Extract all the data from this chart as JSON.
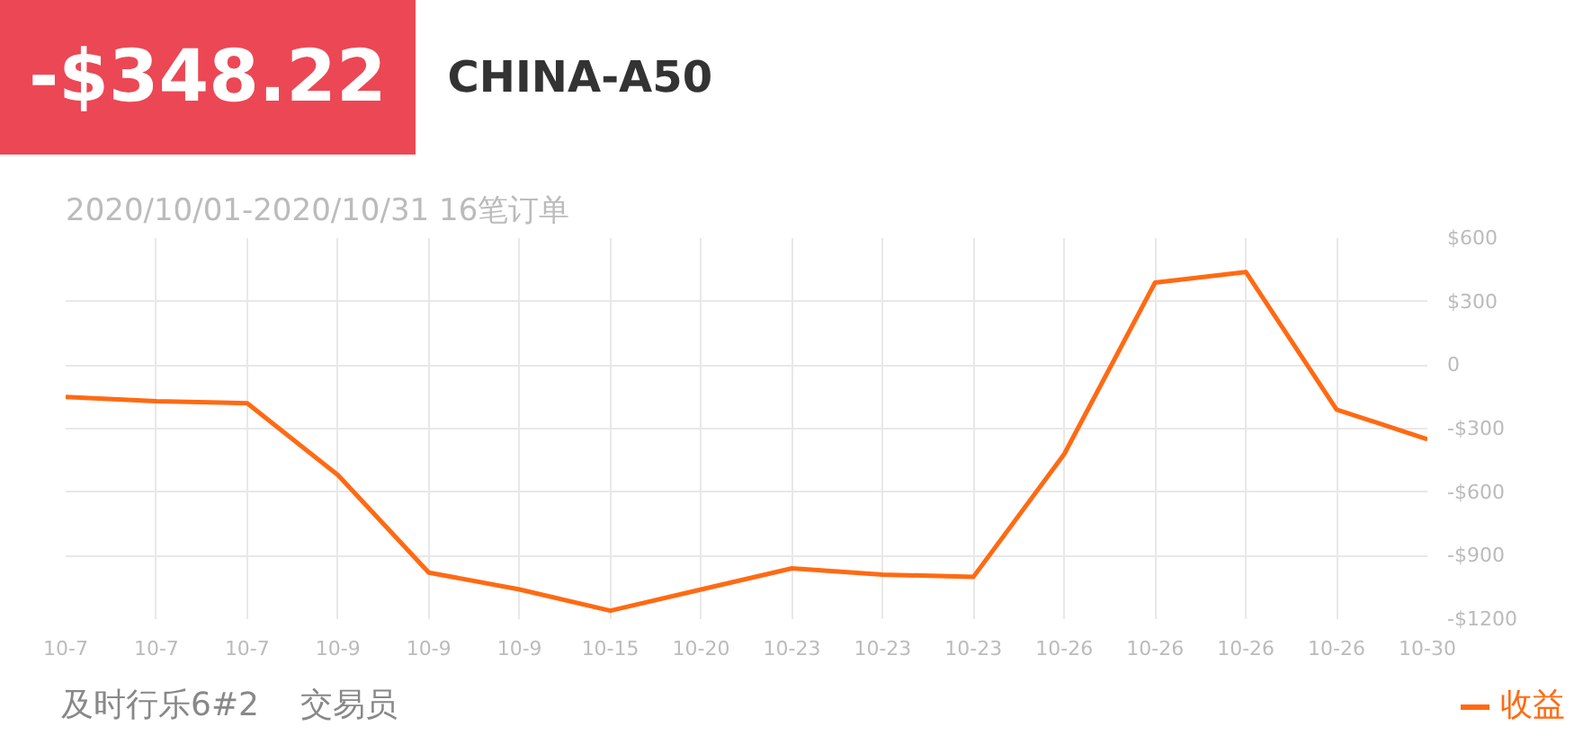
{
  "chart_data": {
    "type": "line",
    "title": "CHINA-A50",
    "subtitle": "2020/10/01-2020/10/31 16笔订单",
    "annotations": [
      "-$348.22",
      "及时行乐6#2",
      "交易员"
    ],
    "categories": [
      "10-7",
      "10-7",
      "10-7",
      "10-9",
      "10-9",
      "10-9",
      "10-15",
      "10-20",
      "10-23",
      "10-23",
      "10-23",
      "10-26",
      "10-26",
      "10-26",
      "10-26",
      "10-30"
    ],
    "series": [
      {
        "name": "收益",
        "color": "#ff6a13",
        "values": [
          -150,
          -170,
          -180,
          -520,
          -980,
          -1060,
          -1160,
          -1060,
          -960,
          -990,
          -1000,
          -420,
          390,
          440,
          -210,
          -350
        ]
      }
    ],
    "ylim": [
      -1200,
      600
    ],
    "yticks": [
      {
        "value": 600,
        "label": "$600"
      },
      {
        "value": 300,
        "label": "$300"
      },
      0,
      {
        "value": -300,
        "label": "-$300"
      },
      {
        "value": -600,
        "label": "-$600"
      },
      {
        "value": -900,
        "label": "-$900"
      },
      {
        "value": -1200,
        "label": "-$1200"
      }
    ],
    "grid": true,
    "legend": "bottom right",
    "marker": "none",
    "line_style": "solid"
  }
}
